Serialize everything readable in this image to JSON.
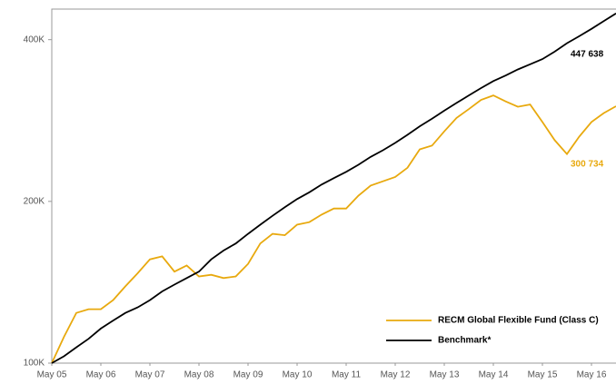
{
  "chart_data": {
    "type": "line",
    "x": [
      "2005-05",
      "2005-08",
      "2005-11",
      "2006-02",
      "2006-05",
      "2006-08",
      "2006-11",
      "2007-02",
      "2007-05",
      "2007-08",
      "2007-11",
      "2008-02",
      "2008-05",
      "2008-08",
      "2008-11",
      "2009-02",
      "2009-05",
      "2009-08",
      "2009-11",
      "2010-02",
      "2010-05",
      "2010-08",
      "2010-11",
      "2011-02",
      "2011-05",
      "2011-08",
      "2011-11",
      "2012-02",
      "2012-05",
      "2012-08",
      "2012-11",
      "2013-02",
      "2013-05",
      "2013-08",
      "2013-11",
      "2014-02",
      "2014-05",
      "2014-08",
      "2014-11",
      "2015-02",
      "2015-05",
      "2015-08",
      "2015-11",
      "2016-02",
      "2016-05",
      "2016-08",
      "2016-11"
    ],
    "series": [
      {
        "name": "RECM Global Flexible Fund (Class C)",
        "color": "#e8a90e",
        "values": [
          100000,
          112000,
          124000,
          126000,
          126000,
          131000,
          139000,
          147000,
          156000,
          158000,
          148000,
          152000,
          145000,
          146000,
          144000,
          145000,
          153000,
          167000,
          174000,
          173000,
          181000,
          183000,
          189000,
          194000,
          194000,
          205000,
          214000,
          218000,
          222000,
          231000,
          250000,
          254000,
          270000,
          286000,
          297000,
          309000,
          315000,
          307000,
          300000,
          303000,
          281000,
          260000,
          245000,
          264000,
          281000,
          292000,
          300734
        ],
        "end_label": "300 734"
      },
      {
        "name": "Benchmark*",
        "color": "#000000",
        "values": [
          100000,
          103000,
          107000,
          111000,
          116000,
          120000,
          124000,
          127000,
          131000,
          136000,
          140000,
          144000,
          148000,
          156000,
          162000,
          167000,
          174000,
          181000,
          188000,
          195000,
          202000,
          208000,
          215000,
          221000,
          227000,
          234000,
          242000,
          249000,
          257000,
          266000,
          276000,
          285000,
          295000,
          305000,
          315000,
          325000,
          335000,
          343000,
          352000,
          360000,
          368000,
          380000,
          394000,
          406000,
          419000,
          433000,
          447638
        ],
        "end_label": "447 638"
      }
    ],
    "xlim": [
      "2005-05",
      "2016-11"
    ],
    "xticks": [
      {
        "value": "2005-05",
        "label": "May 05"
      },
      {
        "value": "2006-05",
        "label": "May 06"
      },
      {
        "value": "2007-05",
        "label": "May 07"
      },
      {
        "value": "2008-05",
        "label": "May 08"
      },
      {
        "value": "2009-05",
        "label": "May 09"
      },
      {
        "value": "2010-05",
        "label": "May 10"
      },
      {
        "value": "2011-05",
        "label": "May 11"
      },
      {
        "value": "2012-05",
        "label": "May 12"
      },
      {
        "value": "2013-05",
        "label": "May 13"
      },
      {
        "value": "2014-05",
        "label": "May 14"
      },
      {
        "value": "2015-05",
        "label": "May 15"
      },
      {
        "value": "2016-05",
        "label": "May 16"
      }
    ],
    "ylim": [
      100000,
      456000
    ],
    "yticks": [
      {
        "value": 100000,
        "label": "100K"
      },
      {
        "value": 200000,
        "label": "200K"
      },
      {
        "value": 400000,
        "label": "400K"
      }
    ],
    "log_scale": true,
    "legend": "lower right"
  }
}
